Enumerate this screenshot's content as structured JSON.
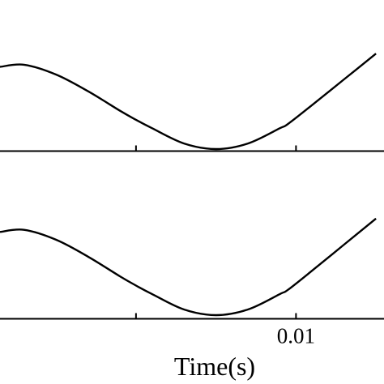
{
  "chart_data": [
    {
      "type": "line",
      "panel": "top",
      "xlabel": "",
      "ylabel": "",
      "title": "",
      "xlim": [
        -0.0085,
        0.0155
      ],
      "x_ticks": [
        0,
        0.01,
        0.02
      ],
      "x_tick_labels": [],
      "grid": false,
      "series": [
        {
          "x": [
            -0.0085,
            -0.007,
            -0.005,
            -0.003,
            -0.001,
            0.0,
            0.001,
            0.003,
            0.005,
            0.007,
            0.009,
            0.0095,
            0.011,
            0.013,
            0.015
          ],
          "values": [
            0.18,
            0.21,
            0.07,
            -0.17,
            -0.45,
            -0.58,
            -0.7,
            -0.92,
            -1.0,
            -0.92,
            -0.7,
            -0.64,
            -0.37,
            0.0,
            0.37
          ]
        }
      ]
    },
    {
      "type": "line",
      "panel": "bottom",
      "xlabel": "Time(s)",
      "ylabel": "",
      "title": "",
      "xlim": [
        -0.0085,
        0.0155
      ],
      "x_ticks": [
        0,
        0.01,
        0.02
      ],
      "x_tick_labels": [
        "",
        "0.01",
        ""
      ],
      "grid": false,
      "series": [
        {
          "x": [
            -0.0085,
            -0.007,
            -0.005,
            -0.003,
            -0.001,
            0.0,
            0.001,
            0.003,
            0.005,
            0.007,
            0.009,
            0.0095,
            0.011,
            0.013,
            0.015
          ],
          "values": [
            0.18,
            0.21,
            0.07,
            -0.17,
            -0.45,
            -0.58,
            -0.7,
            -0.92,
            -1.0,
            -0.92,
            -0.7,
            -0.64,
            -0.37,
            0.0,
            0.37
          ]
        }
      ]
    }
  ]
}
